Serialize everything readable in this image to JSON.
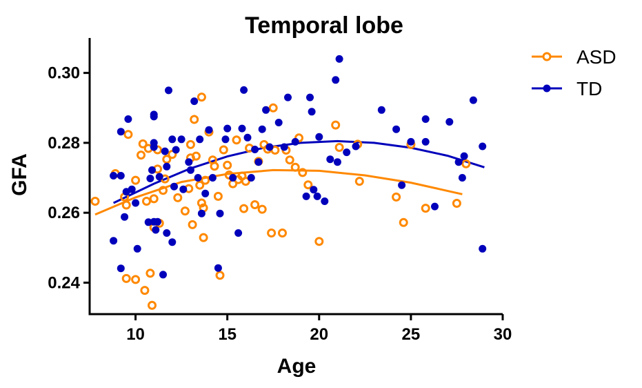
{
  "chart_data": {
    "type": "scatter",
    "title": "Temporal lobe",
    "xlabel": "Age",
    "ylabel": "GFA",
    "xlim": [
      7.5,
      30
    ],
    "ylim": [
      0.231,
      0.31
    ],
    "xticks": [
      10,
      15,
      20,
      25,
      30
    ],
    "xtick_labels": [
      "10",
      "15",
      "20",
      "25",
      "30"
    ],
    "yticks": [
      0.24,
      0.26,
      0.28,
      0.3
    ],
    "ytick_labels": [
      "0.24",
      "0.26",
      "0.28",
      "0.30"
    ],
    "legend_position": "top-right",
    "series": [
      {
        "name": "ASD",
        "color": "#ff8800",
        "marker": "open-circle",
        "points": [
          [
            7.8,
            0.2633
          ],
          [
            8.9,
            0.2712
          ],
          [
            9.4,
            0.2645
          ],
          [
            9.5,
            0.2622
          ],
          [
            9.6,
            0.2824
          ],
          [
            9.5,
            0.2412
          ],
          [
            10.0,
            0.2409
          ],
          [
            10.0,
            0.2693
          ],
          [
            10.3,
            0.2765
          ],
          [
            10.4,
            0.2797
          ],
          [
            10.5,
            0.2378
          ],
          [
            10.6,
            0.2633
          ],
          [
            10.7,
            0.2784
          ],
          [
            10.8,
            0.2427
          ],
          [
            10.9,
            0.2335
          ],
          [
            11.0,
            0.2558
          ],
          [
            11.0,
            0.264
          ],
          [
            11.2,
            0.2725
          ],
          [
            11.2,
            0.278
          ],
          [
            11.3,
            0.257
          ],
          [
            11.5,
            0.2664
          ],
          [
            11.6,
            0.2697
          ],
          [
            11.7,
            0.2753
          ],
          [
            12.0,
            0.2767
          ],
          [
            12.3,
            0.2643
          ],
          [
            12.7,
            0.2605
          ],
          [
            12.9,
            0.2669
          ],
          [
            13.0,
            0.2795
          ],
          [
            13.0,
            0.2757
          ],
          [
            13.1,
            0.2566
          ],
          [
            13.2,
            0.2867
          ],
          [
            13.3,
            0.2762
          ],
          [
            13.5,
            0.2679
          ],
          [
            13.6,
            0.2931
          ],
          [
            13.6,
            0.2628
          ],
          [
            13.7,
            0.2529
          ],
          [
            13.7,
            0.2614
          ],
          [
            13.8,
            0.2693
          ],
          [
            14.0,
            0.2831
          ],
          [
            14.2,
            0.2751
          ],
          [
            14.3,
            0.2733
          ],
          [
            14.5,
            0.2647
          ],
          [
            14.6,
            0.2421
          ],
          [
            14.8,
            0.278
          ],
          [
            15.0,
            0.2736
          ],
          [
            15.1,
            0.2708
          ],
          [
            15.3,
            0.2683
          ],
          [
            15.5,
            0.2808
          ],
          [
            15.6,
            0.2695
          ],
          [
            15.8,
            0.2705
          ],
          [
            15.9,
            0.2612
          ],
          [
            16.0,
            0.269
          ],
          [
            16.2,
            0.2785
          ],
          [
            16.5,
            0.2623
          ],
          [
            16.7,
            0.2747
          ],
          [
            16.9,
            0.261
          ],
          [
            17.0,
            0.2795
          ],
          [
            17.2,
            0.2782
          ],
          [
            17.4,
            0.2542
          ],
          [
            17.5,
            0.29
          ],
          [
            17.6,
            0.2779
          ],
          [
            18.0,
            0.2542
          ],
          [
            18.2,
            0.2779
          ],
          [
            18.4,
            0.2751
          ],
          [
            18.7,
            0.273
          ],
          [
            18.9,
            0.2814
          ],
          [
            19.1,
            0.2715
          ],
          [
            19.4,
            0.268
          ],
          [
            20.0,
            0.2518
          ],
          [
            20.9,
            0.2851
          ],
          [
            21.1,
            0.2787
          ],
          [
            22.1,
            0.2796
          ],
          [
            22.2,
            0.269
          ],
          [
            24.2,
            0.2645
          ],
          [
            24.6,
            0.2572
          ],
          [
            25.0,
            0.2795
          ],
          [
            25.8,
            0.2613
          ],
          [
            27.5,
            0.2627
          ],
          [
            28.0,
            0.274
          ]
        ],
        "fit": [
          [
            7.8,
            0.2595
          ],
          [
            10,
            0.2644
          ],
          [
            12.5,
            0.2688
          ],
          [
            15,
            0.2711
          ],
          [
            17.5,
            0.2722
          ],
          [
            20,
            0.272
          ],
          [
            22.5,
            0.2707
          ],
          [
            25,
            0.2686
          ],
          [
            27.8,
            0.2653
          ]
        ]
      },
      {
        "name": "TD",
        "color": "#0000bb",
        "marker": "filled-circle",
        "points": [
          [
            8.8,
            0.252
          ],
          [
            8.8,
            0.2706
          ],
          [
            9.2,
            0.2706
          ],
          [
            9.2,
            0.2832
          ],
          [
            9.2,
            0.2441
          ],
          [
            9.4,
            0.2588
          ],
          [
            9.5,
            0.266
          ],
          [
            9.6,
            0.2868
          ],
          [
            9.8,
            0.2667
          ],
          [
            10.0,
            0.2628
          ],
          [
            10.1,
            0.2497
          ],
          [
            10.7,
            0.2573
          ],
          [
            10.8,
            0.2698
          ],
          [
            10.9,
            0.2722
          ],
          [
            11.0,
            0.28
          ],
          [
            11.0,
            0.2788
          ],
          [
            11.0,
            0.2881
          ],
          [
            11.0,
            0.2875
          ],
          [
            11.0,
            0.2574
          ],
          [
            11.1,
            0.2551
          ],
          [
            11.2,
            0.2574
          ],
          [
            11.3,
            0.2703
          ],
          [
            11.5,
            0.2423
          ],
          [
            11.6,
            0.2776
          ],
          [
            11.7,
            0.2542
          ],
          [
            11.7,
            0.2732
          ],
          [
            11.8,
            0.295
          ],
          [
            12.0,
            0.2516
          ],
          [
            12.0,
            0.281
          ],
          [
            12.1,
            0.2675
          ],
          [
            12.2,
            0.278
          ],
          [
            12.5,
            0.281
          ],
          [
            12.6,
            0.2667
          ],
          [
            12.9,
            0.2745
          ],
          [
            13.0,
            0.2722
          ],
          [
            13.2,
            0.2919
          ],
          [
            13.4,
            0.27
          ],
          [
            13.5,
            0.281
          ],
          [
            13.6,
            0.2598
          ],
          [
            13.8,
            0.2655
          ],
          [
            14.0,
            0.2837
          ],
          [
            14.2,
            0.27
          ],
          [
            14.5,
            0.2442
          ],
          [
            14.6,
            0.2598
          ],
          [
            14.9,
            0.281
          ],
          [
            15.0,
            0.2841
          ],
          [
            15.3,
            0.27
          ],
          [
            15.6,
            0.2542
          ],
          [
            15.8,
            0.2841
          ],
          [
            15.9,
            0.2951
          ],
          [
            16.1,
            0.2815
          ],
          [
            16.3,
            0.27
          ],
          [
            16.5,
            0.2781
          ],
          [
            16.7,
            0.2745
          ],
          [
            16.9,
            0.2839
          ],
          [
            17.1,
            0.2894
          ],
          [
            17.3,
            0.2788
          ],
          [
            17.8,
            0.2858
          ],
          [
            18.1,
            0.2788
          ],
          [
            18.3,
            0.293
          ],
          [
            18.7,
            0.2803
          ],
          [
            19.3,
            0.2647
          ],
          [
            19.5,
            0.293
          ],
          [
            19.6,
            0.2889
          ],
          [
            19.7,
            0.2666
          ],
          [
            19.9,
            0.2647
          ],
          [
            20.0,
            0.2817
          ],
          [
            20.3,
            0.2633
          ],
          [
            20.6,
            0.2753
          ],
          [
            20.9,
            0.298
          ],
          [
            21.0,
            0.2745
          ],
          [
            21.1,
            0.304
          ],
          [
            21.5,
            0.2773
          ],
          [
            22.0,
            0.279
          ],
          [
            23.4,
            0.2894
          ],
          [
            24.2,
            0.2839
          ],
          [
            24.5,
            0.2679
          ],
          [
            25.0,
            0.2803
          ],
          [
            25.8,
            0.2868
          ],
          [
            25.8,
            0.2803
          ],
          [
            26.3,
            0.2618
          ],
          [
            27.1,
            0.286
          ],
          [
            27.6,
            0.2745
          ],
          [
            27.8,
            0.27
          ],
          [
            27.9,
            0.2762
          ],
          [
            28.4,
            0.2922
          ],
          [
            28.9,
            0.279
          ],
          [
            28.9,
            0.2497
          ]
        ],
        "fit": [
          [
            8.8,
            0.2628
          ],
          [
            11,
            0.2683
          ],
          [
            13,
            0.2727
          ],
          [
            15,
            0.2761
          ],
          [
            17,
            0.2786
          ],
          [
            19,
            0.28
          ],
          [
            21,
            0.2805
          ],
          [
            23,
            0.28
          ],
          [
            25,
            0.2786
          ],
          [
            27,
            0.2763
          ],
          [
            29,
            0.273
          ]
        ]
      }
    ]
  }
}
